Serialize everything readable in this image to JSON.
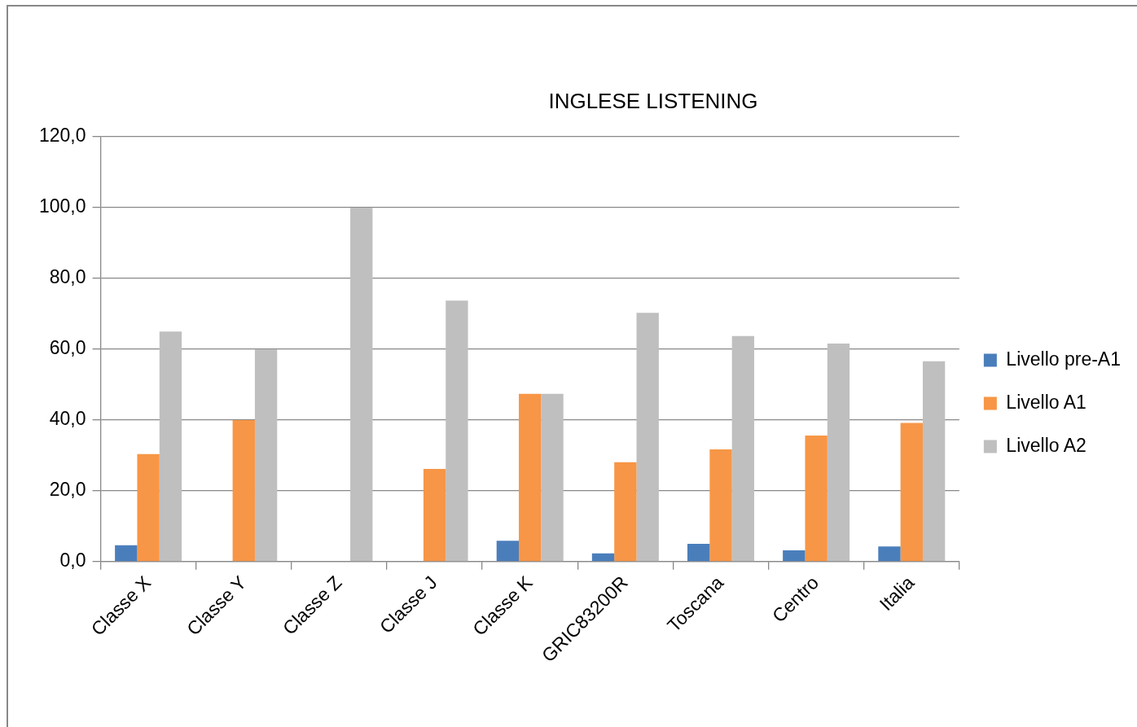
{
  "chart_data": {
    "type": "bar",
    "title": "INGLESE LISTENING",
    "categories": [
      "Classe X",
      "Classe Y",
      "Classe Z",
      "Classe J",
      "Classe K",
      "GRIC83200R",
      "Toscana",
      "Centro",
      "Italia"
    ],
    "series": [
      {
        "name": "Livello pre-A1",
        "color": "#4a7ebb",
        "values": [
          4.6,
          0,
          0,
          0,
          5.9,
          2.3,
          5.0,
          3.2,
          4.3
        ]
      },
      {
        "name": "Livello A1",
        "color": "#f79646",
        "values": [
          30.4,
          40.0,
          0,
          26.2,
          47.4,
          28.1,
          31.7,
          35.6,
          39.2
        ]
      },
      {
        "name": "Livello A2",
        "color": "#bfbfbf",
        "values": [
          65.0,
          60.0,
          100.0,
          73.7,
          47.4,
          70.3,
          63.7,
          61.6,
          56.6
        ]
      }
    ],
    "ylim": [
      0,
      120
    ],
    "yticks": [
      {
        "value": 0,
        "label": "0,0"
      },
      {
        "value": 20,
        "label": "20,0"
      },
      {
        "value": 40,
        "label": "40,0"
      },
      {
        "value": 60,
        "label": "60,0"
      },
      {
        "value": 80,
        "label": "80,0"
      },
      {
        "value": 100,
        "label": "100,0"
      },
      {
        "value": 120,
        "label": "120,0"
      }
    ],
    "grid": "y",
    "legend": "right"
  }
}
